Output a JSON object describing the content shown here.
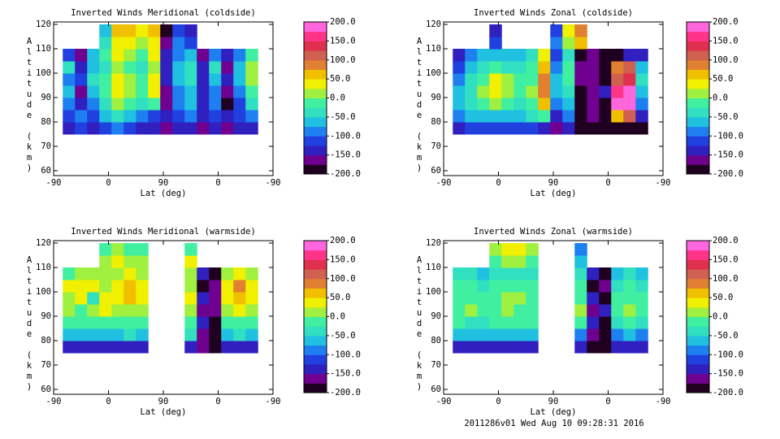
{
  "chart_data": [
    {
      "type": "contour",
      "title": "Inverted Winds Meridional (coldside)",
      "xlabel": "Lat (deg)",
      "ylabel": "Altitude (km)",
      "xlim": [
        0,
        360
      ],
      "ylim": [
        58,
        121
      ],
      "xticks": [
        {
          "value": 0,
          "label": "-90"
        },
        {
          "value": 90,
          "label": "0"
        },
        {
          "value": 180,
          "label": "90"
        },
        {
          "value": 270,
          "label": "0"
        },
        {
          "value": 360,
          "label": "-90"
        }
      ],
      "yticks": [
        60,
        70,
        80,
        90,
        100,
        110,
        120
      ],
      "x_edges": [
        15,
        35,
        55,
        75,
        95,
        115,
        135,
        155,
        175,
        195,
        215,
        235,
        255,
        275,
        295,
        315,
        335
      ],
      "y_edges": [
        75,
        80,
        85,
        90,
        95,
        100,
        105,
        110,
        115,
        120
      ],
      "z": [
        [
          -150,
          -125,
          -150,
          -125,
          -100,
          -125,
          -150,
          -150,
          -175,
          -150,
          -150,
          -175,
          -150,
          -175,
          -150,
          -150
        ],
        [
          -125,
          -100,
          -125,
          -75,
          -50,
          -75,
          -100,
          -125,
          -150,
          -125,
          -100,
          -150,
          -125,
          -150,
          -125,
          -100
        ],
        [
          -100,
          -150,
          -100,
          -50,
          0,
          -25,
          -50,
          -25,
          -175,
          -100,
          -75,
          -150,
          -100,
          -200,
          -125,
          -50
        ],
        [
          -75,
          -175,
          -75,
          -25,
          25,
          0,
          -25,
          25,
          -175,
          -100,
          -75,
          -150,
          -100,
          -175,
          -100,
          -25
        ],
        [
          -100,
          -125,
          -50,
          -25,
          25,
          0,
          -25,
          25,
          -150,
          -75,
          -50,
          -150,
          -75,
          -150,
          -75,
          0
        ],
        [
          -50,
          -150,
          -75,
          -50,
          0,
          -25,
          -50,
          0,
          -150,
          -75,
          -50,
          -150,
          -50,
          -175,
          -75,
          0
        ],
        [
          -125,
          -175,
          -75,
          -25,
          25,
          0,
          -25,
          25,
          -150,
          -100,
          -75,
          -175,
          -100,
          -150,
          -100,
          -25
        ],
        [
          null,
          null,
          null,
          -50,
          25,
          25,
          0,
          25,
          -175,
          -100,
          -125,
          null,
          null,
          null,
          null,
          null
        ],
        [
          null,
          null,
          null,
          -75,
          50,
          50,
          25,
          50,
          -200,
          -125,
          -150,
          null,
          null,
          null,
          null,
          null
        ]
      ],
      "levels": [
        -200,
        -175,
        -150,
        -125,
        -100,
        -75,
        -50,
        -25,
        0,
        25,
        50,
        75,
        100,
        125,
        150,
        175,
        200
      ],
      "colors": [
        "#200020",
        "#700090",
        "#3020c0",
        "#2040e0",
        "#1e80f0",
        "#20c0e0",
        "#30e0c0",
        "#40f0a0",
        "#a0f040",
        "#f0f000",
        "#f0c000",
        "#e08030",
        "#d06050",
        "#e03050",
        "#ff3388",
        "#ff66dd"
      ],
      "cticks": [
        {
          "value": 200,
          "label": "200.0"
        },
        {
          "value": 150,
          "label": "150.0"
        },
        {
          "value": 100,
          "label": "100.0"
        },
        {
          "value": 50,
          "label": "50.0"
        },
        {
          "value": 0,
          "label": "0.0"
        },
        {
          "value": -50,
          "label": "-50.0"
        },
        {
          "value": -100,
          "label": "-100.0"
        },
        {
          "value": -150,
          "label": "-150.0"
        },
        {
          "value": -200,
          "label": "-200.0"
        }
      ]
    },
    {
      "type": "contour",
      "title": "Inverted Winds Zonal (coldside)",
      "xlabel": "Lat (deg)",
      "ylabel": "Altitude (km)",
      "xlim": [
        0,
        360
      ],
      "ylim": [
        58,
        121
      ],
      "xticks": [
        {
          "value": 0,
          "label": "-90"
        },
        {
          "value": 90,
          "label": "0"
        },
        {
          "value": 180,
          "label": "90"
        },
        {
          "value": 270,
          "label": "0"
        },
        {
          "value": 360,
          "label": "-90"
        }
      ],
      "yticks": [
        60,
        70,
        80,
        90,
        100,
        110,
        120
      ],
      "x_edges": [
        15,
        35,
        55,
        75,
        95,
        115,
        135,
        155,
        175,
        195,
        215,
        235,
        255,
        275,
        295,
        315,
        335
      ],
      "y_edges": [
        75,
        80,
        85,
        90,
        95,
        100,
        105,
        110,
        115,
        120
      ],
      "z": [
        [
          -150,
          -125,
          -125,
          -125,
          -125,
          -125,
          -125,
          -150,
          -175,
          -150,
          -200,
          -200,
          -200,
          -200,
          -200,
          -200
        ],
        [
          -100,
          -75,
          -75,
          -75,
          -75,
          -75,
          -50,
          -25,
          -150,
          -100,
          -200,
          -175,
          -200,
          50,
          100,
          -150
        ],
        [
          -75,
          -50,
          -25,
          0,
          -25,
          -50,
          -25,
          50,
          -100,
          -75,
          -200,
          -175,
          -200,
          175,
          175,
          -100
        ],
        [
          -75,
          -50,
          0,
          25,
          0,
          -25,
          0,
          75,
          -75,
          -50,
          -200,
          -175,
          -150,
          150,
          175,
          -75
        ],
        [
          -100,
          -50,
          -25,
          25,
          0,
          -25,
          -25,
          75,
          -75,
          -25,
          -175,
          -175,
          -200,
          100,
          125,
          -50
        ],
        [
          -125,
          -75,
          -50,
          -25,
          -50,
          -50,
          -25,
          50,
          -100,
          -25,
          -175,
          -175,
          -200,
          75,
          100,
          -75
        ],
        [
          -150,
          -100,
          -75,
          -75,
          -75,
          -75,
          -50,
          25,
          -125,
          -50,
          -200,
          -175,
          -200,
          -200,
          -150,
          -150
        ],
        [
          null,
          null,
          null,
          -125,
          null,
          null,
          null,
          null,
          -100,
          0,
          50,
          null,
          null,
          null,
          null,
          null
        ],
        [
          null,
          null,
          null,
          -150,
          null,
          null,
          null,
          null,
          -125,
          25,
          75,
          null,
          null,
          null,
          null,
          null
        ]
      ],
      "levels": [
        -200,
        -175,
        -150,
        -125,
        -100,
        -75,
        -50,
        -25,
        0,
        25,
        50,
        75,
        100,
        125,
        150,
        175,
        200
      ],
      "colors": [
        "#200020",
        "#700090",
        "#3020c0",
        "#2040e0",
        "#1e80f0",
        "#20c0e0",
        "#30e0c0",
        "#40f0a0",
        "#a0f040",
        "#f0f000",
        "#f0c000",
        "#e08030",
        "#d06050",
        "#e03050",
        "#ff3388",
        "#ff66dd"
      ],
      "cticks": [
        {
          "value": 200,
          "label": "200.0"
        },
        {
          "value": 150,
          "label": "150.0"
        },
        {
          "value": 100,
          "label": "100.0"
        },
        {
          "value": 50,
          "label": "50.0"
        },
        {
          "value": 0,
          "label": "0.0"
        },
        {
          "value": -50,
          "label": "-50.0"
        },
        {
          "value": -100,
          "label": "-100.0"
        },
        {
          "value": -150,
          "label": "-150.0"
        },
        {
          "value": -200,
          "label": "-200.0"
        }
      ]
    },
    {
      "type": "contour",
      "title": "Inverted Winds Meridional (warmside)",
      "xlabel": "Lat (deg)",
      "ylabel": "Altitude (km)",
      "xlim": [
        0,
        360
      ],
      "ylim": [
        58,
        121
      ],
      "xticks": [
        {
          "value": 0,
          "label": "-90"
        },
        {
          "value": 90,
          "label": "0"
        },
        {
          "value": 180,
          "label": "90"
        },
        {
          "value": 270,
          "label": "0"
        },
        {
          "value": 360,
          "label": "-90"
        }
      ],
      "yticks": [
        60,
        70,
        80,
        90,
        100,
        110,
        120
      ],
      "x_edges": [
        15,
        35,
        55,
        75,
        95,
        115,
        135,
        155,
        175,
        195,
        215,
        235,
        255,
        275,
        295,
        315,
        335
      ],
      "y_edges": [
        75,
        80,
        85,
        90,
        95,
        100,
        105,
        110,
        115,
        120
      ],
      "z": [
        [
          -150,
          -150,
          -150,
          -150,
          -150,
          -150,
          -150,
          null,
          null,
          null,
          -150,
          -175,
          -200,
          -150,
          -150,
          -150
        ],
        [
          -75,
          -75,
          -75,
          -75,
          -75,
          -50,
          -75,
          null,
          null,
          null,
          -50,
          -175,
          -200,
          -75,
          -50,
          -75
        ],
        [
          -25,
          -25,
          -25,
          -25,
          -25,
          -25,
          -25,
          null,
          null,
          null,
          -25,
          -150,
          -200,
          -25,
          -25,
          -25
        ],
        [
          0,
          -25,
          0,
          25,
          0,
          0,
          0,
          null,
          null,
          null,
          0,
          -175,
          -175,
          0,
          25,
          0
        ],
        [
          0,
          25,
          -50,
          25,
          25,
          50,
          25,
          null,
          null,
          null,
          25,
          -150,
          -175,
          25,
          50,
          25
        ],
        [
          25,
          25,
          25,
          0,
          25,
          50,
          25,
          null,
          null,
          null,
          0,
          -200,
          -175,
          25,
          75,
          25
        ],
        [
          -25,
          0,
          0,
          0,
          0,
          25,
          0,
          null,
          null,
          null,
          0,
          -150,
          -200,
          0,
          25,
          0
        ],
        [
          null,
          null,
          null,
          0,
          25,
          0,
          0,
          null,
          null,
          null,
          25,
          null,
          null,
          null,
          null,
          null
        ],
        [
          null,
          null,
          null,
          -25,
          0,
          -25,
          -25,
          null,
          null,
          null,
          -25,
          null,
          null,
          null,
          null,
          null
        ]
      ],
      "levels": [
        -200,
        -175,
        -150,
        -125,
        -100,
        -75,
        -50,
        -25,
        0,
        25,
        50,
        75,
        100,
        125,
        150,
        175,
        200
      ],
      "colors": [
        "#200020",
        "#700090",
        "#3020c0",
        "#2040e0",
        "#1e80f0",
        "#20c0e0",
        "#30e0c0",
        "#40f0a0",
        "#a0f040",
        "#f0f000",
        "#f0c000",
        "#e08030",
        "#d06050",
        "#e03050",
        "#ff3388",
        "#ff66dd"
      ],
      "cticks": [
        {
          "value": 200,
          "label": "200.0"
        },
        {
          "value": 150,
          "label": "150.0"
        },
        {
          "value": 100,
          "label": "100.0"
        },
        {
          "value": 50,
          "label": "50.0"
        },
        {
          "value": 0,
          "label": "0.0"
        },
        {
          "value": -50,
          "label": "-50.0"
        },
        {
          "value": -100,
          "label": "-100.0"
        },
        {
          "value": -150,
          "label": "-150.0"
        },
        {
          "value": -200,
          "label": "-200.0"
        }
      ]
    },
    {
      "type": "contour",
      "title": "Inverted Winds Zonal (warmside)",
      "xlabel": "Lat (deg)",
      "ylabel": "Altitude (km)",
      "xlim": [
        0,
        360
      ],
      "ylim": [
        58,
        121
      ],
      "xticks": [
        {
          "value": 0,
          "label": "-90"
        },
        {
          "value": 90,
          "label": "0"
        },
        {
          "value": 180,
          "label": "90"
        },
        {
          "value": 270,
          "label": "0"
        },
        {
          "value": 360,
          "label": "-90"
        }
      ],
      "yticks": [
        60,
        70,
        80,
        90,
        100,
        110,
        120
      ],
      "x_edges": [
        15,
        35,
        55,
        75,
        95,
        115,
        135,
        155,
        175,
        195,
        215,
        235,
        255,
        275,
        295,
        315,
        335
      ],
      "y_edges": [
        75,
        80,
        85,
        90,
        95,
        100,
        105,
        110,
        115,
        120
      ],
      "z": [
        [
          -150,
          -150,
          -150,
          -150,
          -150,
          -150,
          -150,
          null,
          null,
          null,
          -150,
          -200,
          -200,
          -150,
          -150,
          -150
        ],
        [
          -75,
          -75,
          -75,
          -75,
          -75,
          -75,
          -75,
          null,
          null,
          null,
          -100,
          -175,
          -200,
          -100,
          -75,
          -100
        ],
        [
          -25,
          -50,
          -50,
          -25,
          -25,
          -25,
          -25,
          null,
          null,
          null,
          -25,
          -150,
          -200,
          -50,
          -25,
          -50
        ],
        [
          -25,
          0,
          -25,
          -25,
          0,
          -25,
          -25,
          null,
          null,
          null,
          0,
          -175,
          -150,
          -25,
          0,
          -25
        ],
        [
          -25,
          -25,
          -25,
          -25,
          0,
          0,
          -25,
          null,
          null,
          null,
          -25,
          -150,
          -200,
          -25,
          -25,
          -25
        ],
        [
          -25,
          -25,
          -50,
          -25,
          -25,
          -25,
          -25,
          null,
          null,
          null,
          -25,
          -200,
          -175,
          -50,
          -25,
          -50
        ],
        [
          -50,
          -50,
          -75,
          -50,
          -50,
          -50,
          -50,
          null,
          null,
          null,
          -50,
          -150,
          -200,
          -75,
          -50,
          -75
        ],
        [
          null,
          null,
          null,
          -25,
          0,
          0,
          -25,
          null,
          null,
          null,
          -75,
          null,
          null,
          null,
          null,
          null
        ],
        [
          null,
          null,
          null,
          0,
          25,
          25,
          0,
          null,
          null,
          null,
          -100,
          null,
          null,
          null,
          null,
          null
        ]
      ],
      "levels": [
        -200,
        -175,
        -150,
        -125,
        -100,
        -75,
        -50,
        -25,
        0,
        25,
        50,
        75,
        100,
        125,
        150,
        175,
        200
      ],
      "colors": [
        "#200020",
        "#700090",
        "#3020c0",
        "#2040e0",
        "#1e80f0",
        "#20c0e0",
        "#30e0c0",
        "#40f0a0",
        "#a0f040",
        "#f0f000",
        "#f0c000",
        "#e08030",
        "#d06050",
        "#e03050",
        "#ff3388",
        "#ff66dd"
      ],
      "cticks": [
        {
          "value": 200,
          "label": "200.0"
        },
        {
          "value": 150,
          "label": "150.0"
        },
        {
          "value": 100,
          "label": "100.0"
        },
        {
          "value": 50,
          "label": "50.0"
        },
        {
          "value": 0,
          "label": "0.0"
        },
        {
          "value": -50,
          "label": "-50.0"
        },
        {
          "value": -100,
          "label": "-100.0"
        },
        {
          "value": -150,
          "label": "-150.0"
        },
        {
          "value": -200,
          "label": "-200.0"
        }
      ]
    }
  ],
  "footer": "2011286v01 Wed Aug 10 09:28:31 2016"
}
